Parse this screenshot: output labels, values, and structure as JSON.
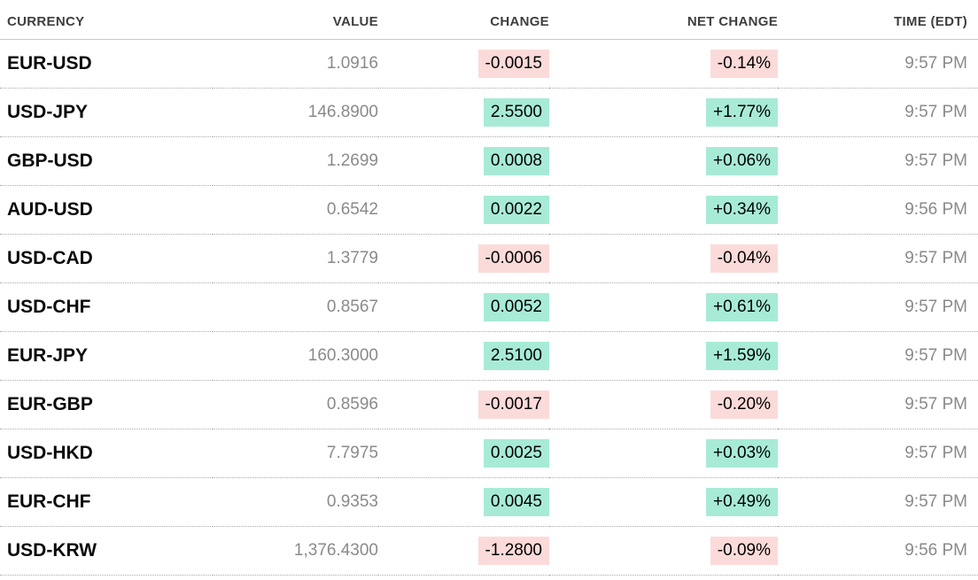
{
  "colors": {
    "positive_bg": "#a7ebd7",
    "negative_bg": "#fbdbd9",
    "header_text": "#3e3e3e",
    "currency_text": "#0a0a0a",
    "muted_text": "#8a8a8a"
  },
  "table": {
    "columns": [
      {
        "key": "currency",
        "label": "CURRENCY"
      },
      {
        "key": "value",
        "label": "VALUE"
      },
      {
        "key": "change",
        "label": "CHANGE"
      },
      {
        "key": "net_change",
        "label": "NET CHANGE"
      },
      {
        "key": "time",
        "label": "TIME (EDT)"
      }
    ],
    "rows": [
      {
        "currency": "EUR-USD",
        "value": "1.0916",
        "change": "-0.0015",
        "net_change": "-0.14%",
        "time": "9:57 PM",
        "direction": "down"
      },
      {
        "currency": "USD-JPY",
        "value": "146.8900",
        "change": "2.5500",
        "net_change": "+1.77%",
        "time": "9:57 PM",
        "direction": "up"
      },
      {
        "currency": "GBP-USD",
        "value": "1.2699",
        "change": "0.0008",
        "net_change": "+0.06%",
        "time": "9:57 PM",
        "direction": "up"
      },
      {
        "currency": "AUD-USD",
        "value": "0.6542",
        "change": "0.0022",
        "net_change": "+0.34%",
        "time": "9:56 PM",
        "direction": "up"
      },
      {
        "currency": "USD-CAD",
        "value": "1.3779",
        "change": "-0.0006",
        "net_change": "-0.04%",
        "time": "9:57 PM",
        "direction": "down"
      },
      {
        "currency": "USD-CHF",
        "value": "0.8567",
        "change": "0.0052",
        "net_change": "+0.61%",
        "time": "9:57 PM",
        "direction": "up"
      },
      {
        "currency": "EUR-JPY",
        "value": "160.3000",
        "change": "2.5100",
        "net_change": "+1.59%",
        "time": "9:57 PM",
        "direction": "up"
      },
      {
        "currency": "EUR-GBP",
        "value": "0.8596",
        "change": "-0.0017",
        "net_change": "-0.20%",
        "time": "9:57 PM",
        "direction": "down"
      },
      {
        "currency": "USD-HKD",
        "value": "7.7975",
        "change": "0.0025",
        "net_change": "+0.03%",
        "time": "9:57 PM",
        "direction": "up"
      },
      {
        "currency": "EUR-CHF",
        "value": "0.9353",
        "change": "0.0045",
        "net_change": "+0.49%",
        "time": "9:57 PM",
        "direction": "up"
      },
      {
        "currency": "USD-KRW",
        "value": "1,376.4300",
        "change": "-1.2800",
        "net_change": "-0.09%",
        "time": "9:56 PM",
        "direction": "down"
      }
    ]
  }
}
